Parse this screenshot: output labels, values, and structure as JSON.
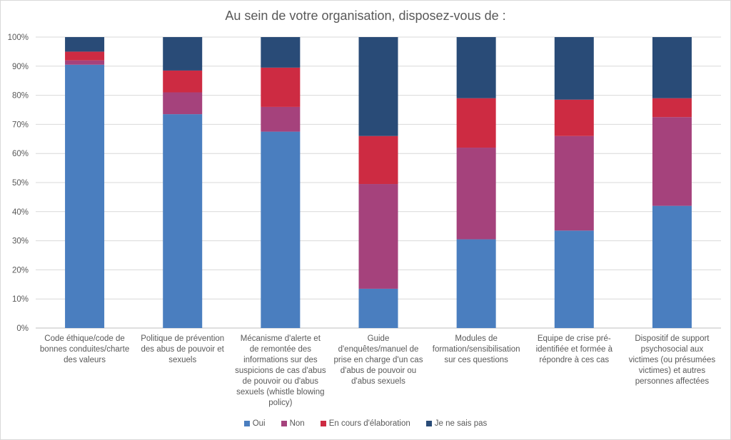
{
  "chart_data": {
    "type": "bar",
    "stacked": true,
    "title": "Au sein de votre organisation, disposez-vous de :",
    "categories": [
      "Code éthique/code de bonnes conduites/charte des valeurs",
      "Politique de prévention des abus de pouvoir et sexuels",
      "Mécanisme d'alerte et de remontée des informations sur des suspicions de cas d'abus de pouvoir ou d'abus sexuels (whistle blowing policy)",
      "Guide d'enquêtes/manuel de prise en charge d'un cas d'abus de pouvoir ou d'abus sexuels",
      "Modules de formation/sensibilisation sur ces questions",
      "Equipe de crise pré-identifiée et formée à répondre à ces cas",
      "Dispositif de support psychosocial aux victimes (ou présumées victimes) et autres personnes affectées"
    ],
    "series": [
      {
        "name": "Oui",
        "color": "#4a7ebf",
        "values": [
          90.5,
          73.5,
          67.5,
          13.5,
          30.5,
          33.5,
          42.0
        ]
      },
      {
        "name": "Non",
        "color": "#a5427c",
        "values": [
          1.5,
          7.5,
          8.5,
          36.0,
          31.5,
          32.5,
          30.5
        ]
      },
      {
        "name": "En cours d'élaboration",
        "color": "#cd2b42",
        "values": [
          3.0,
          7.5,
          13.5,
          16.5,
          17.0,
          12.5,
          6.5
        ]
      },
      {
        "name": "Je ne sais pas",
        "color": "#294b77",
        "values": [
          5.0,
          11.5,
          10.5,
          34.0,
          21.0,
          21.5,
          21.0
        ]
      }
    ],
    "ylim": [
      0,
      100
    ],
    "yticks": [
      "0%",
      "10%",
      "20%",
      "30%",
      "40%",
      "50%",
      "60%",
      "70%",
      "80%",
      "90%",
      "100%"
    ],
    "grid": true,
    "legend_position": "bottom"
  }
}
